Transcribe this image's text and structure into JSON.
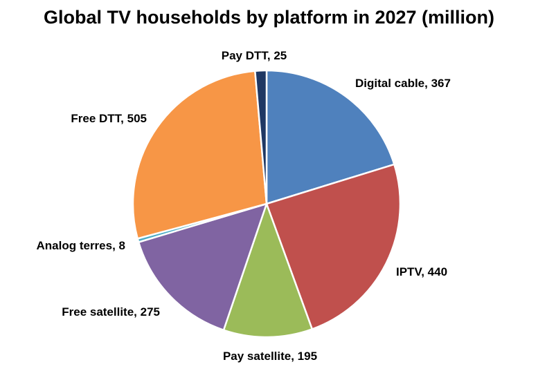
{
  "chart_data": {
    "type": "pie",
    "title": "Global TV households by platform in 2027 (million)",
    "start_angle_deg": 0,
    "direction": "clockwise",
    "slices": [
      {
        "name": "Digital cable",
        "value": 367,
        "label": "Digital cable, 367",
        "color": "#4f81bd"
      },
      {
        "name": "IPTV",
        "value": 440,
        "label": "IPTV, 440",
        "color": "#c0504d"
      },
      {
        "name": "Pay satellite",
        "value": 195,
        "label": "Pay satellite, 195",
        "color": "#9bbb59"
      },
      {
        "name": "Free satellite",
        "value": 275,
        "label": "Free satellite, 275",
        "color": "#8064a2"
      },
      {
        "name": "Analog terres",
        "value": 8,
        "label": "Analog terres, 8",
        "color": "#4bacc6"
      },
      {
        "name": "Free DTT",
        "value": 505,
        "label": "Free DTT, 505",
        "color": "#f79646"
      },
      {
        "name": "Pay DTT",
        "value": 25,
        "label": "Pay DTT, 25",
        "color": "#1f3864"
      }
    ]
  }
}
